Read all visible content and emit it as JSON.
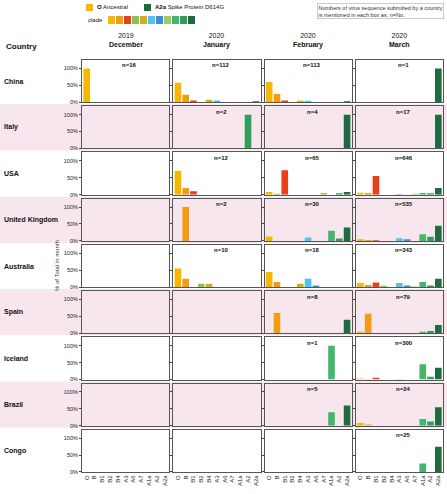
{
  "chart_data": {
    "type": "bar",
    "header": "Country",
    "ylabel": "% of Total in month",
    "note": "Numbers of virus sequence submitted by a country is mentioned in each box as, n=No.",
    "legend_items": [
      {
        "label": "O",
        "name": "Ancestral"
      },
      {
        "label": "A2a",
        "name": "Spike Protein D614G"
      }
    ],
    "clade_label": "clade",
    "months": [
      {
        "year": "2019",
        "month": "December"
      },
      {
        "year": "2020",
        "month": "January"
      },
      {
        "year": "2020",
        "month": "February"
      },
      {
        "year": "2020",
        "month": "March"
      }
    ],
    "categories": [
      "O",
      "B",
      "B1",
      "B2",
      "B4",
      "A3",
      "A6",
      "A7",
      "A1a",
      "A2",
      "A2a"
    ],
    "colors": [
      "#f5b700",
      "#f39c12",
      "#e8401c",
      "#8bc34a",
      "#c9b21a",
      "#4fc3f7",
      "#3f8fd0",
      "#9ccc65",
      "#43b86b",
      "#2e9e5a",
      "#1e6b3e"
    ],
    "ylim": [
      0,
      125
    ],
    "yticks": [
      {
        "value": 0,
        "label": "0%"
      },
      {
        "value": 50,
        "label": "50%"
      },
      {
        "value": 100,
        "label": "100%"
      }
    ],
    "grid": false,
    "panels": [
      {
        "country": "China",
        "n": [
          "n=16",
          "n=112",
          "n=113",
          "n=1"
        ],
        "values": [
          [
            100,
            0,
            0,
            0,
            0,
            0,
            0,
            0,
            0,
            0,
            0
          ],
          [
            58,
            22,
            5,
            0,
            7,
            5,
            0,
            0,
            0,
            0,
            3
          ],
          [
            60,
            24,
            5,
            0,
            4,
            4,
            0,
            0,
            0,
            0,
            3
          ],
          [
            0,
            0,
            0,
            0,
            0,
            0,
            0,
            0,
            0,
            0,
            100
          ]
        ]
      },
      {
        "country": "Italy",
        "n": [
          null,
          "n=2",
          "n=4",
          "n=17"
        ],
        "values": [
          null,
          [
            0,
            0,
            0,
            0,
            0,
            0,
            0,
            0,
            0,
            100,
            0
          ],
          [
            0,
            0,
            0,
            0,
            0,
            0,
            0,
            0,
            0,
            0,
            100
          ],
          [
            0,
            0,
            0,
            0,
            0,
            0,
            0,
            0,
            0,
            0,
            100
          ]
        ]
      },
      {
        "country": "USA",
        "n": [
          null,
          "n=12",
          "n=65",
          "n=646"
        ],
        "values": [
          null,
          [
            70,
            20,
            10,
            0,
            0,
            0,
            0,
            0,
            0,
            0,
            0
          ],
          [
            8,
            3,
            72,
            0,
            0,
            0,
            0,
            5,
            0,
            4,
            8
          ],
          [
            6,
            5,
            55,
            0,
            0,
            2,
            0,
            3,
            5,
            4,
            20
          ]
        ]
      },
      {
        "country": "United Kingdom",
        "n": [
          null,
          "n=2",
          "n=30",
          "n=535"
        ],
        "values": [
          null,
          [
            0,
            100,
            0,
            0,
            0,
            0,
            0,
            0,
            0,
            0,
            0
          ],
          [
            13,
            0,
            0,
            0,
            0,
            10,
            0,
            0,
            30,
            7,
            40
          ],
          [
            5,
            3,
            2,
            0,
            0,
            8,
            5,
            0,
            20,
            12,
            45
          ]
        ]
      },
      {
        "country": "Australia",
        "n": [
          null,
          "n=10",
          "n=18",
          "n=343"
        ],
        "values": [
          null,
          [
            55,
            25,
            0,
            10,
            10,
            0,
            0,
            0,
            0,
            0,
            0
          ],
          [
            45,
            15,
            0,
            0,
            10,
            25,
            5,
            0,
            0,
            0,
            0
          ],
          [
            12,
            6,
            14,
            4,
            0,
            12,
            5,
            2,
            15,
            5,
            25
          ]
        ]
      },
      {
        "country": "Spain",
        "n": [
          null,
          null,
          "n=8",
          "n=79"
        ],
        "values": [
          null,
          null,
          [
            0,
            60,
            0,
            0,
            0,
            0,
            0,
            0,
            0,
            0,
            40
          ],
          [
            5,
            58,
            0,
            0,
            0,
            0,
            0,
            0,
            5,
            7,
            25
          ]
        ]
      },
      {
        "country": "Iceland",
        "n": [
          null,
          null,
          "n=1",
          "n=300"
        ],
        "values": [
          null,
          null,
          [
            0,
            0,
            0,
            0,
            0,
            0,
            0,
            0,
            100,
            0,
            0
          ],
          [
            3,
            2,
            5,
            0,
            0,
            2,
            0,
            0,
            45,
            8,
            35
          ]
        ]
      },
      {
        "country": "Brazil",
        "n": [
          null,
          null,
          "n=5",
          "n=24"
        ],
        "values": [
          null,
          null,
          [
            0,
            0,
            0,
            0,
            0,
            0,
            0,
            0,
            40,
            0,
            60
          ],
          [
            8,
            4,
            0,
            0,
            0,
            0,
            0,
            0,
            20,
            13,
            55
          ]
        ]
      },
      {
        "country": "Congo",
        "n": [
          null,
          null,
          null,
          "n=25"
        ],
        "values": [
          null,
          null,
          null,
          [
            0,
            0,
            0,
            0,
            0,
            0,
            0,
            0,
            25,
            0,
            75
          ]
        ]
      }
    ]
  }
}
